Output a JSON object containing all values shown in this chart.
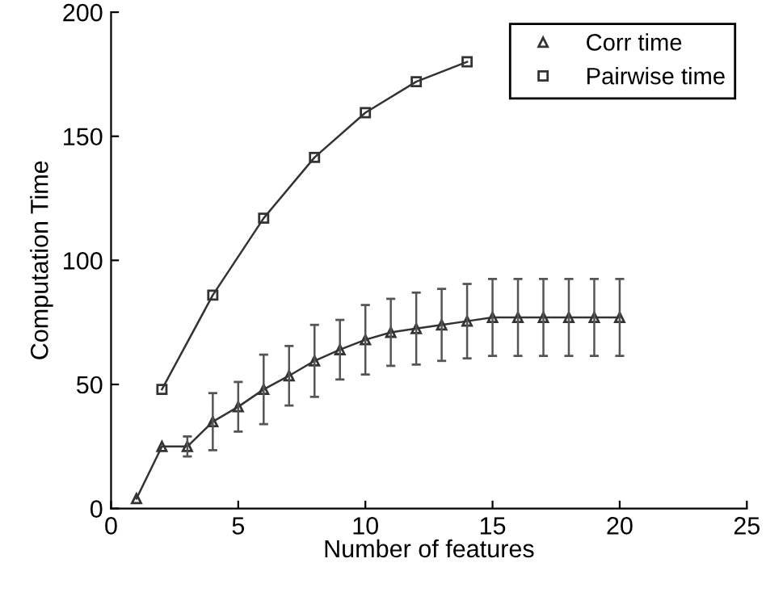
{
  "chart_data": {
    "type": "line",
    "xlabel": "Number of features",
    "ylabel": "Computation Time",
    "xlim": [
      0,
      25
    ],
    "ylim": [
      0,
      200
    ],
    "xticks": [
      0,
      5,
      10,
      15,
      20,
      25
    ],
    "yticks": [
      0,
      50,
      100,
      150,
      200
    ],
    "grid": false,
    "legend": "top right",
    "series": [
      {
        "name": "Corr time",
        "color": "#333333",
        "marker": "triangle",
        "x": [
          1,
          2,
          3,
          4,
          5,
          6,
          7,
          8,
          9,
          10,
          11,
          12,
          13,
          14,
          15,
          16,
          17,
          18,
          19,
          20
        ],
        "values": [
          4,
          25,
          25,
          35,
          41,
          48,
          53.5,
          59.5,
          64,
          68,
          71,
          72.5,
          74,
          75.5,
          77,
          77,
          77,
          77,
          77,
          77
        ],
        "errors": [
          null,
          null,
          4,
          11.5,
          10,
          14,
          12,
          14.5,
          12,
          14,
          13.5,
          14.5,
          14.5,
          15,
          15.5,
          15.5,
          15.5,
          15.5,
          15.5,
          15.5
        ]
      },
      {
        "name": "Pairwise time",
        "color": "#333333",
        "marker": "square",
        "x": [
          2,
          4,
          6,
          8,
          10,
          12,
          14
        ],
        "values": [
          48,
          86,
          117,
          141.5,
          159.5,
          172,
          180
        ]
      }
    ]
  }
}
